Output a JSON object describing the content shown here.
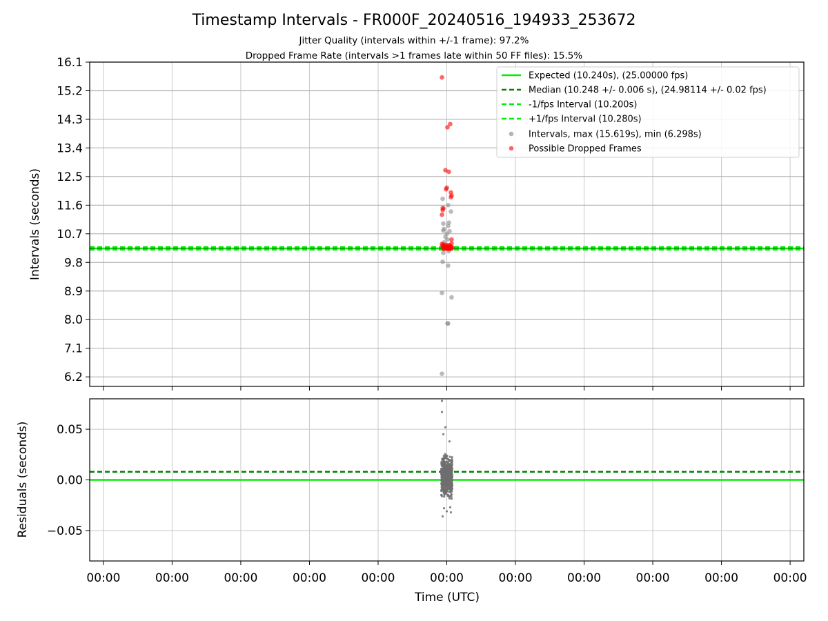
{
  "chart_data": {
    "title": "Timestamp Intervals - FR000F_20240516_194933_253672",
    "subtitle_1": "Jitter Quality (intervals within +/-1 frame): 97.2%",
    "subtitle_2": "Dropped Frame Rate (intervals >1 frames late within 50 FF files): 15.5%",
    "xlabel": "Time (UTC)",
    "x_tick_labels": [
      "00:00",
      "00:00",
      "00:00",
      "00:00",
      "00:00",
      "00:00",
      "00:00",
      "00:00",
      "00:00",
      "00:00",
      "00:00"
    ],
    "grid": true,
    "legend_placement": "upper-right",
    "colors": {
      "expected": "#00ee00",
      "median": "#008000",
      "bound": "#00ee00",
      "interval": "#8c8c8c",
      "dropped": "#ff0000"
    },
    "top": {
      "type": "scatter",
      "ylabel": "Intervals (seconds)",
      "ylim": [
        5.9,
        16.1
      ],
      "y_ticks": [
        6.2,
        7.1,
        8.0,
        8.9,
        9.8,
        10.7,
        11.6,
        12.5,
        13.4,
        14.3,
        15.2,
        16.1
      ],
      "y_tick_labels": [
        "6.2",
        "7.1",
        "8.0",
        "8.9",
        "9.8",
        "10.7",
        "11.6",
        "12.5",
        "13.4",
        "14.3",
        "15.2",
        "16.1"
      ],
      "lines": {
        "expected": 10.24,
        "median": 10.248,
        "lower": 10.2,
        "upper": 10.28
      },
      "legend": [
        "Expected (10.240s), (25.00000 fps)",
        "Median (10.248 +/- 0.006 s), (24.98114 +/- 0.02 fps)",
        "-1/fps Interval (10.200s)",
        "+1/fps Interval (10.280s)",
        "Intervals, max (15.619s), min (6.298s)",
        "Possible Dropped Frames"
      ],
      "intervals": [
        [
          4.93,
          6.298
        ],
        [
          4.93,
          8.84
        ],
        [
          5.07,
          8.7
        ],
        [
          5.01,
          7.88
        ],
        [
          5.02,
          7.88
        ],
        [
          4.94,
          9.82
        ],
        [
          5.02,
          9.7
        ],
        [
          4.95,
          10.1
        ],
        [
          5.03,
          10.15
        ],
        [
          4.96,
          10.43
        ],
        [
          5.01,
          10.52
        ],
        [
          5.0,
          10.7
        ],
        [
          4.95,
          10.8
        ],
        [
          5.02,
          10.95
        ],
        [
          4.95,
          11.02
        ],
        [
          5.03,
          11.05
        ],
        [
          5.06,
          11.4
        ],
        [
          4.94,
          11.52
        ],
        [
          5.02,
          11.6
        ],
        [
          4.94,
          11.8
        ],
        [
          4.96,
          10.85
        ],
        [
          5.04,
          10.78
        ],
        [
          4.98,
          10.6
        ]
      ],
      "dropped": [
        [
          4.93,
          15.619
        ],
        [
          5.05,
          14.15
        ],
        [
          5.01,
          14.05
        ],
        [
          4.98,
          12.7
        ],
        [
          5.03,
          12.65
        ],
        [
          5.0,
          12.15
        ],
        [
          4.99,
          12.1
        ],
        [
          5.06,
          12.0
        ],
        [
          5.07,
          11.9
        ],
        [
          5.06,
          11.85
        ],
        [
          4.95,
          11.5
        ],
        [
          4.94,
          11.45
        ],
        [
          4.93,
          11.3
        ],
        [
          5.07,
          10.52
        ],
        [
          5.07,
          10.4
        ],
        [
          4.93,
          10.38
        ],
        [
          4.94,
          10.3
        ],
        [
          4.95,
          10.25
        ],
        [
          4.96,
          10.22
        ],
        [
          4.97,
          10.28
        ],
        [
          4.98,
          10.24
        ],
        [
          4.99,
          10.26
        ],
        [
          5.0,
          10.23
        ],
        [
          5.01,
          10.27
        ],
        [
          5.02,
          10.25
        ],
        [
          5.03,
          10.22
        ],
        [
          5.04,
          10.29
        ],
        [
          5.05,
          10.24
        ],
        [
          5.06,
          10.26
        ],
        [
          5.07,
          10.23
        ],
        [
          5.08,
          10.27
        ],
        [
          4.94,
          10.34
        ],
        [
          4.96,
          10.36
        ],
        [
          4.98,
          10.31
        ],
        [
          5.0,
          10.35
        ],
        [
          5.02,
          10.32
        ],
        [
          5.04,
          10.34
        ],
        [
          5.06,
          10.3
        ]
      ]
    },
    "bottom": {
      "type": "scatter",
      "ylabel": "Residuals (seconds)",
      "ylim": [
        -0.08,
        0.08
      ],
      "y_ticks": [
        -0.05,
        0.0,
        0.05
      ],
      "y_tick_labels": [
        "−0.05",
        "0.00",
        "0.05"
      ],
      "lines": {
        "expected": 0.0,
        "median": 0.008
      },
      "residual_x_range": [
        4.92,
        5.08
      ],
      "residual_y_range": [
        -0.025,
        0.028
      ],
      "residual_outliers": [
        [
          4.93,
          0.078
        ],
        [
          4.93,
          0.067
        ],
        [
          4.98,
          0.052
        ],
        [
          4.95,
          0.045
        ],
        [
          5.04,
          0.038
        ],
        [
          4.94,
          -0.036
        ],
        [
          5.06,
          -0.032
        ],
        [
          5.0,
          -0.031
        ],
        [
          4.96,
          -0.028
        ],
        [
          5.05,
          -0.027
        ]
      ]
    }
  }
}
